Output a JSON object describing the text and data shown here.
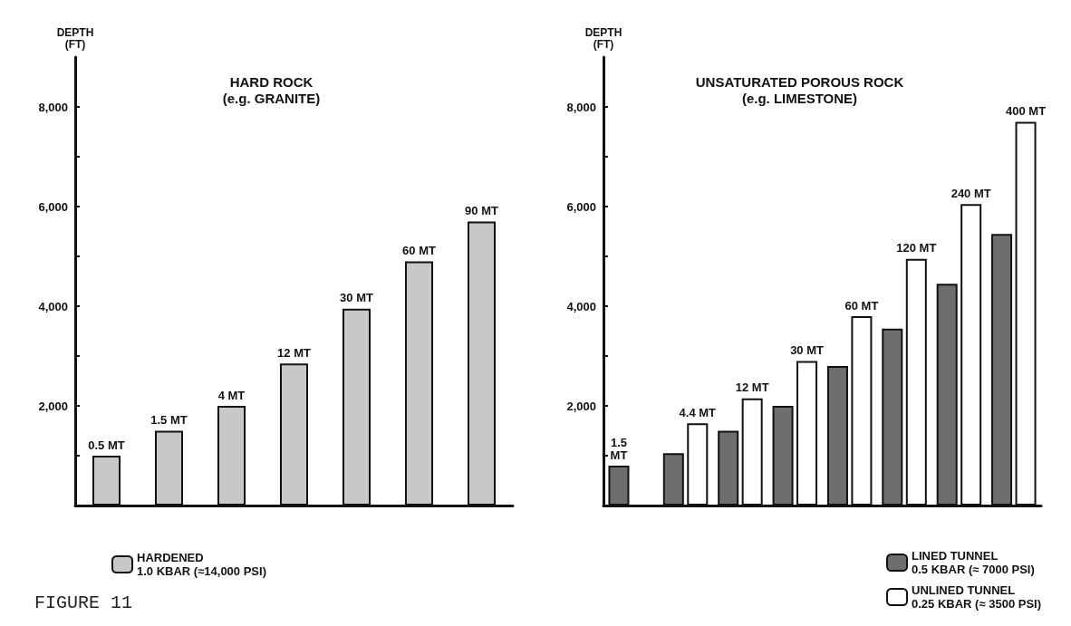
{
  "chart_data": [
    {
      "type": "bar",
      "title": "HARD ROCK\n(e.g. GRANITE)",
      "ylabel": "DEPTH\n(FT)",
      "categories": [
        "0.5 MT",
        "1.5 MT",
        "4 MT",
        "12 MT",
        "30 MT",
        "60 MT",
        "90 MT"
      ],
      "series": [
        {
          "name": "HARDENED\n1.0 KBAR (≈14,000 PSI)",
          "color": "#c8c8c8",
          "values": [
            1000,
            1500,
            2000,
            2850,
            3950,
            4900,
            5700
          ]
        }
      ],
      "ylim": [
        0,
        9000
      ],
      "yticks": [
        {
          "value": 0,
          "label": null
        },
        {
          "value": 1000,
          "label": null
        },
        {
          "value": 2000,
          "label": "2,000"
        },
        {
          "value": 3000,
          "label": null
        },
        {
          "value": 4000,
          "label": "4,000"
        },
        {
          "value": 5000,
          "label": null
        },
        {
          "value": 6000,
          "label": "6,000"
        },
        {
          "value": 7000,
          "label": null
        },
        {
          "value": 8000,
          "label": "8,000"
        }
      ],
      "grid": false,
      "legend": "bottom left",
      "annotations": [
        "FIGURE 11"
      ]
    },
    {
      "type": "bar",
      "title": "UNSATURATED POROUS ROCK\n(e.g. LIMESTONE)",
      "ylabel": "DEPTH\n(FT)",
      "categories": [
        "1.5\nMT",
        "4.4 MT",
        "12 MT",
        "30 MT",
        "60 MT",
        "120 MT",
        "240 MT",
        "400 MT"
      ],
      "series": [
        {
          "name": "LINED TUNNEL\n0.5 KBAR (≈ 7000 PSI)",
          "color": "#6e6e6e",
          "values": [
            800,
            1050,
            1500,
            2000,
            2800,
            3550,
            4450,
            5450
          ]
        },
        {
          "name": "UNLINED TUNNEL\n0.25 KBAR (≈ 3500 PSI)",
          "color": "#ffffff",
          "values": [
            null,
            1650,
            2150,
            2900,
            3800,
            4950,
            6050,
            7700
          ]
        }
      ],
      "ylim": [
        0,
        9000
      ],
      "yticks": [
        {
          "value": 0,
          "label": null
        },
        {
          "value": 1000,
          "label": null
        },
        {
          "value": 2000,
          "label": "2,000"
        },
        {
          "value": 3000,
          "label": null
        },
        {
          "value": 4000,
          "label": "4,000"
        },
        {
          "value": 5000,
          "label": null
        },
        {
          "value": 6000,
          "label": "6,000"
        },
        {
          "value": 7000,
          "label": null
        },
        {
          "value": 8000,
          "label": "8,000"
        }
      ],
      "grid": false,
      "legend": "bottom right"
    }
  ]
}
